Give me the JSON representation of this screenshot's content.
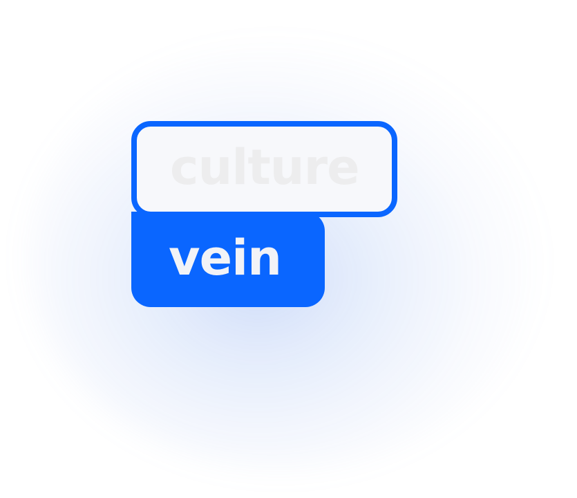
{
  "words": {
    "top": "culture",
    "bottom": "vein"
  },
  "colors": {
    "accent": "#0a66ff",
    "outline_fill": "#f7f8fb",
    "top_text": "#ededee",
    "bottom_text": "#f2f3f7"
  }
}
